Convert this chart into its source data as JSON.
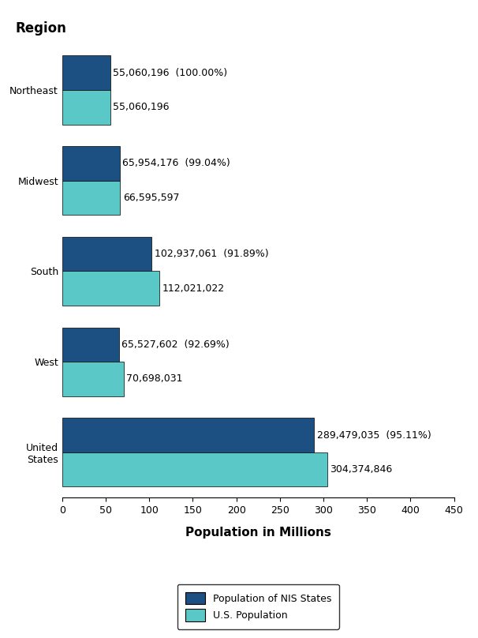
{
  "title": "Region",
  "xlabel": "Population in Millions",
  "regions": [
    "Northeast",
    "Midwest",
    "South",
    "West",
    "United\nStates"
  ],
  "nis_values": [
    55.060196,
    65.954176,
    102.937061,
    65.527602,
    289.479035
  ],
  "us_values": [
    55.060196,
    66.595597,
    112.021022,
    70.698031,
    304.374846
  ],
  "nis_labels": [
    "55,060,196  (100.00%)",
    "65,954,176  (99.04%)",
    "102,937,061  (91.89%)",
    "65,527,602  (92.69%)",
    "289,479,035  (95.11%)"
  ],
  "us_labels": [
    "55,060,196",
    "66,595,597",
    "112,021,022",
    "70,698,031",
    "304,374,846"
  ],
  "nis_color": "#1c4f82",
  "us_color": "#5bc8c8",
  "bar_height": 0.38,
  "xlim": [
    0,
    450
  ],
  "xticks": [
    0,
    50,
    100,
    150,
    200,
    250,
    300,
    350,
    400,
    450
  ],
  "legend_labels": [
    "Population of NIS States",
    "U.S. Population"
  ],
  "background_color": "#ffffff",
  "title_fontsize": 12,
  "label_fontsize": 9,
  "axis_fontsize": 9,
  "xlabel_fontsize": 11
}
